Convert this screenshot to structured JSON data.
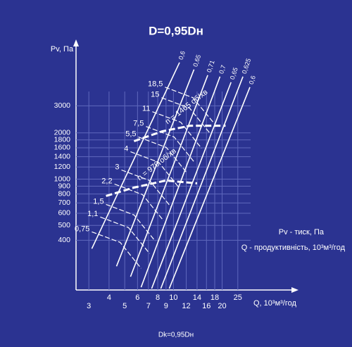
{
  "chart_data": {
    "type": "line",
    "title": "D=0,95Dн",
    "ylabel": "Pv, Па",
    "xlabel": "Q, 10³м³/год",
    "footer": "Dk=0,95Dн",
    "notes": [
      "Pv - тиск, Па",
      "Q - продуктивність, 10³м³/год"
    ],
    "log_x": true,
    "log_y": true,
    "grid": true,
    "xlim": [
      2.5,
      30
    ],
    "ylim": [
      190,
      7000
    ],
    "xticks": [
      3,
      4,
      5,
      6,
      7,
      8,
      9,
      10,
      12,
      14,
      16,
      18,
      20,
      25
    ],
    "yticks": [
      400,
      500,
      600,
      700,
      800,
      900,
      1000,
      1200,
      1400,
      1600,
      1800,
      2000,
      3000
    ],
    "efficiency_lines": [
      {
        "name": "0,6",
        "x": [
          3.13,
          10.9
        ],
        "values": [
          353,
          5740
        ]
      },
      {
        "name": "0,65",
        "x": [
          4.45,
          13.4
        ],
        "values": [
          271,
          5170
        ]
      },
      {
        "name": "0,71",
        "x": [
          5.43,
          16.3
        ],
        "values": [
          232,
          4750
        ]
      },
      {
        "name": "0,7",
        "x": [
          6.31,
          19.4
        ],
        "values": [
          198,
          4650
        ]
      },
      {
        "name": "0,65",
        "x": [
          7.33,
          22.7
        ],
        "values": [
          194,
          4270
        ]
      },
      {
        "name": "0,625",
        "x": [
          8.35,
          26.9
        ],
        "values": [
          194,
          4650
        ]
      },
      {
        "name": "0,6",
        "x": [
          9.42,
          29.7
        ],
        "values": [
          194,
          3970
        ]
      }
    ],
    "power_curves": [
      {
        "name": "0,75",
        "x": [
          3.13,
          4.68,
          6.31
        ],
        "values": [
          454,
          388,
          263
        ]
      },
      {
        "name": "1,1",
        "x": [
          3.53,
          5.27,
          7.12
        ],
        "values": [
          567,
          484,
          328
        ]
      },
      {
        "name": "1,5",
        "x": [
          3.83,
          5.71,
          7.71
        ],
        "values": [
          685,
          585,
          396
        ]
      },
      {
        "name": "2,2",
        "x": [
          4.32,
          6.44,
          8.69
        ],
        "values": [
          929,
          793,
          537
        ]
      },
      {
        "name": "3",
        "x": [
          4.77,
          7.12,
          9.61
        ],
        "values": [
          1147,
          979,
          663
        ]
      },
      {
        "name": "4",
        "x": [
          5.43,
          8.11,
          10.9
        ],
        "values": [
          1508,
          1288,
          872
        ]
      },
      {
        "name": "5,5",
        "x": [
          6.07,
          9.05,
          12.2
        ],
        "values": [
          1881,
          1606,
          1088
        ]
      },
      {
        "name": "7,5",
        "x": [
          6.77,
          10.1,
          13.6
        ],
        "values": [
          2202,
          1881,
          1274
        ]
      },
      {
        "name": "11",
        "x": [
          7.41,
          11.1,
          14.9
        ],
        "values": [
          2747,
          2346,
          1589
        ]
      },
      {
        "name": "15",
        "x": [
          8.44,
          12.6,
          17.0
        ],
        "values": [
          3390,
          2896,
          1961
        ]
      },
      {
        "name": "18,5",
        "x": [
          8.87,
          13.2,
          17.9
        ],
        "values": [
          3970,
          3390,
          2297
        ]
      }
    ],
    "speed_curves": [
      {
        "name": "n = 1465 об/хв",
        "x": [
          5.71,
          8.52,
          12.7,
          21.0
        ],
        "values": [
          1765,
          2046,
          2226,
          2226
        ]
      },
      {
        "name": "n = 970 об/хв",
        "x": [
          3.83,
          5.71,
          8.96,
          14.0
        ],
        "values": [
          777,
          881,
          979,
          939
        ]
      }
    ]
  }
}
